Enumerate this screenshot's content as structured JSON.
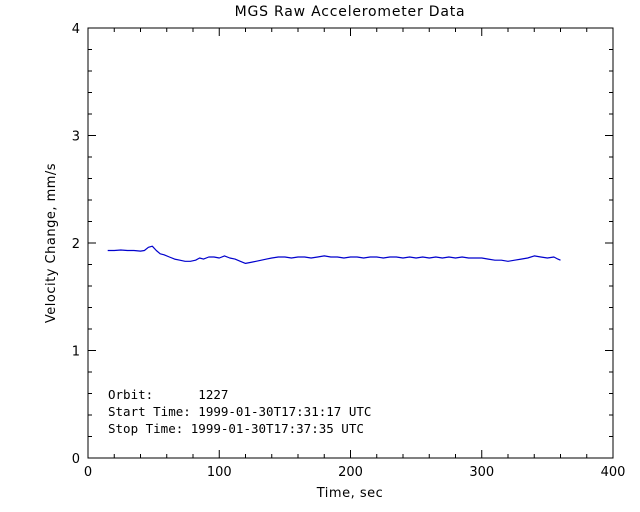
{
  "page": {
    "background": "#ffffff"
  },
  "chart_data": {
    "type": "line",
    "title": "MGS Raw Accelerometer Data",
    "xlabel": "Time, sec",
    "ylabel": "Velocity Change, mm/s",
    "xlim": [
      0,
      400
    ],
    "ylim": [
      0,
      4
    ],
    "xticks": [
      0,
      100,
      200,
      300,
      400
    ],
    "yticks": [
      0,
      1,
      2,
      3,
      4
    ],
    "x_minor_step": 20,
    "y_minor_step": 0.2,
    "grid": "off",
    "legend": "none",
    "line_color": "#0000CD",
    "axis_color": "#000000",
    "series": [
      {
        "name": "velocity_change",
        "x": [
          15,
          20,
          25,
          30,
          35,
          40,
          43,
          46,
          49,
          52,
          55,
          58,
          62,
          66,
          70,
          74,
          78,
          82,
          85,
          88,
          92,
          96,
          100,
          104,
          108,
          112,
          116,
          120,
          124,
          128,
          132,
          136,
          140,
          145,
          150,
          155,
          160,
          165,
          170,
          175,
          180,
          185,
          190,
          195,
          200,
          205,
          210,
          215,
          220,
          225,
          230,
          235,
          240,
          245,
          250,
          255,
          260,
          265,
          270,
          275,
          280,
          285,
          290,
          295,
          300,
          305,
          310,
          315,
          320,
          325,
          330,
          335,
          340,
          345,
          350,
          355,
          358,
          360
        ],
        "y": [
          1.93,
          1.93,
          1.935,
          1.93,
          1.93,
          1.925,
          1.93,
          1.96,
          1.97,
          1.93,
          1.9,
          1.89,
          1.87,
          1.85,
          1.84,
          1.83,
          1.83,
          1.84,
          1.86,
          1.85,
          1.87,
          1.87,
          1.86,
          1.88,
          1.86,
          1.85,
          1.83,
          1.81,
          1.82,
          1.83,
          1.84,
          1.85,
          1.86,
          1.87,
          1.87,
          1.86,
          1.87,
          1.87,
          1.86,
          1.87,
          1.88,
          1.87,
          1.87,
          1.86,
          1.87,
          1.87,
          1.86,
          1.87,
          1.87,
          1.86,
          1.87,
          1.87,
          1.86,
          1.87,
          1.86,
          1.87,
          1.86,
          1.87,
          1.86,
          1.87,
          1.86,
          1.87,
          1.86,
          1.86,
          1.86,
          1.85,
          1.84,
          1.84,
          1.83,
          1.84,
          1.85,
          1.86,
          1.88,
          1.87,
          1.86,
          1.87,
          1.85,
          1.84
        ]
      }
    ],
    "annotations": [
      {
        "text": "Orbit:      1227"
      },
      {
        "text": "Start Time: 1999-01-30T17:31:17 UTC"
      },
      {
        "text": "Stop Time: 1999-01-30T17:37:35 UTC"
      }
    ]
  }
}
